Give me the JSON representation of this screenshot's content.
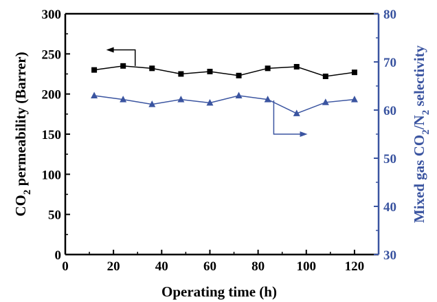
{
  "chart_data": {
    "type": "line",
    "xlabel": "Operating time (h)",
    "ylabel": {
      "main": "CO",
      "sub": "2",
      "rest": " permeability (Barrer)"
    },
    "y2label": {
      "main": "Mixed gas CO",
      "sub1": "2",
      "mid": "/N",
      "sub2": "2",
      "rest": " selectivity"
    },
    "xlim": [
      0,
      130
    ],
    "ylim": [
      0,
      300
    ],
    "y2lim": [
      30,
      80
    ],
    "x_ticks": [
      0,
      20,
      40,
      60,
      80,
      100,
      120
    ],
    "y_ticks": [
      0,
      50,
      100,
      150,
      200,
      250,
      300
    ],
    "y2_ticks": [
      30,
      40,
      50,
      60,
      70,
      80
    ],
    "grid": false,
    "legend": "none",
    "series": [
      {
        "axis": "left",
        "marker": "square",
        "color": "#000000",
        "x": [
          12,
          24,
          36,
          48,
          60,
          72,
          84,
          96,
          108,
          120
        ],
        "values": [
          230,
          235,
          232,
          225,
          228,
          223,
          232,
          234,
          222,
          227
        ]
      },
      {
        "axis": "right",
        "marker": "triangle",
        "color": "#3a54a0",
        "x": [
          12,
          24,
          36,
          48,
          60,
          72,
          84,
          96,
          108,
          120
        ],
        "values": [
          63,
          62.2,
          61.2,
          62.2,
          61.5,
          63,
          62.2,
          59.3,
          61.6,
          62.2
        ]
      }
    ],
    "annotations": [
      {
        "type": "arrow",
        "direction": "left",
        "series": 0
      },
      {
        "type": "arrow",
        "direction": "right",
        "series": 1
      }
    ]
  }
}
